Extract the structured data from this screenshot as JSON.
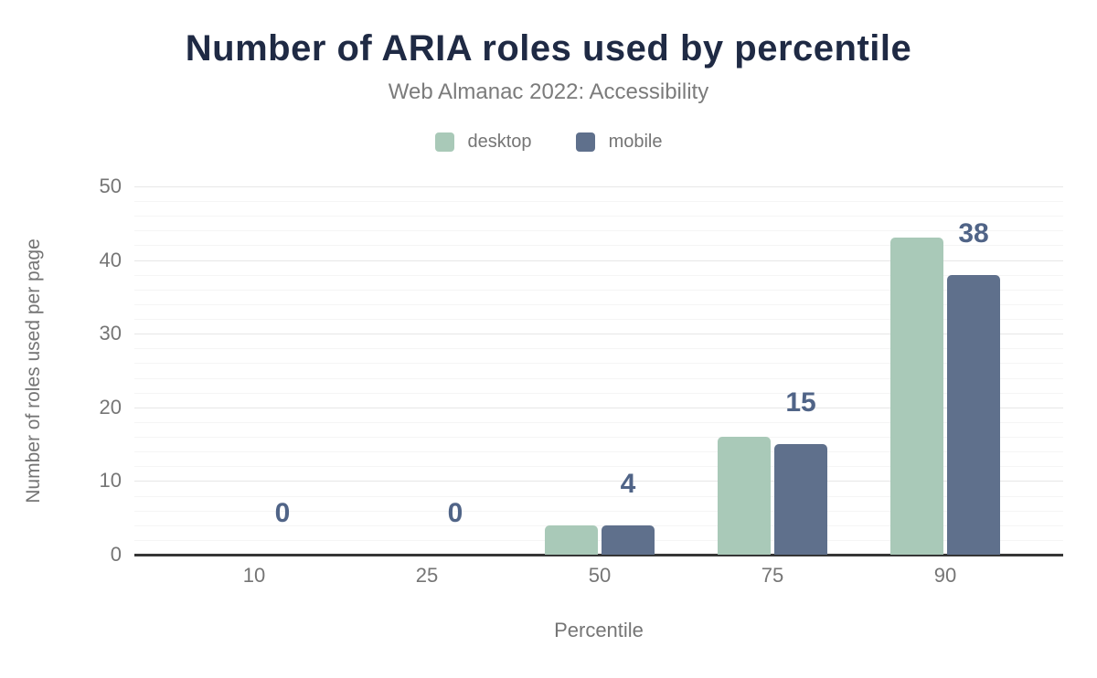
{
  "chart_data": {
    "type": "bar",
    "title": "Number of ARIA roles used by percentile",
    "subtitle": "Web Almanac 2022: Accessibility",
    "xlabel": "Percentile",
    "ylabel": "Number of roles used per page",
    "categories": [
      "10",
      "25",
      "50",
      "75",
      "90"
    ],
    "series": [
      {
        "name": "desktop",
        "color": "#a9c9b8",
        "values": [
          0,
          0,
          4,
          16,
          43
        ]
      },
      {
        "name": "mobile",
        "color": "#5f708c",
        "values": [
          0,
          0,
          4,
          15,
          38
        ]
      }
    ],
    "data_labels": {
      "on_series": "mobile",
      "values": [
        "0",
        "0",
        "4",
        "15",
        "38"
      ],
      "color": "#506487"
    },
    "ylim": [
      0,
      50
    ],
    "yticks": [
      "0",
      "10",
      "20",
      "30",
      "40",
      "50"
    ],
    "minor_grid_step": 2,
    "grid": true,
    "legend_position": "top"
  },
  "style": {
    "background": "#ffffff",
    "title_color": "#1f2a44",
    "text_color": "#757575",
    "subtitle_color": "#7b7b7b",
    "axis_line_color": "#363636",
    "major_grid_color": "#e7e7e7",
    "minor_grid_color": "#f5f5f5"
  }
}
